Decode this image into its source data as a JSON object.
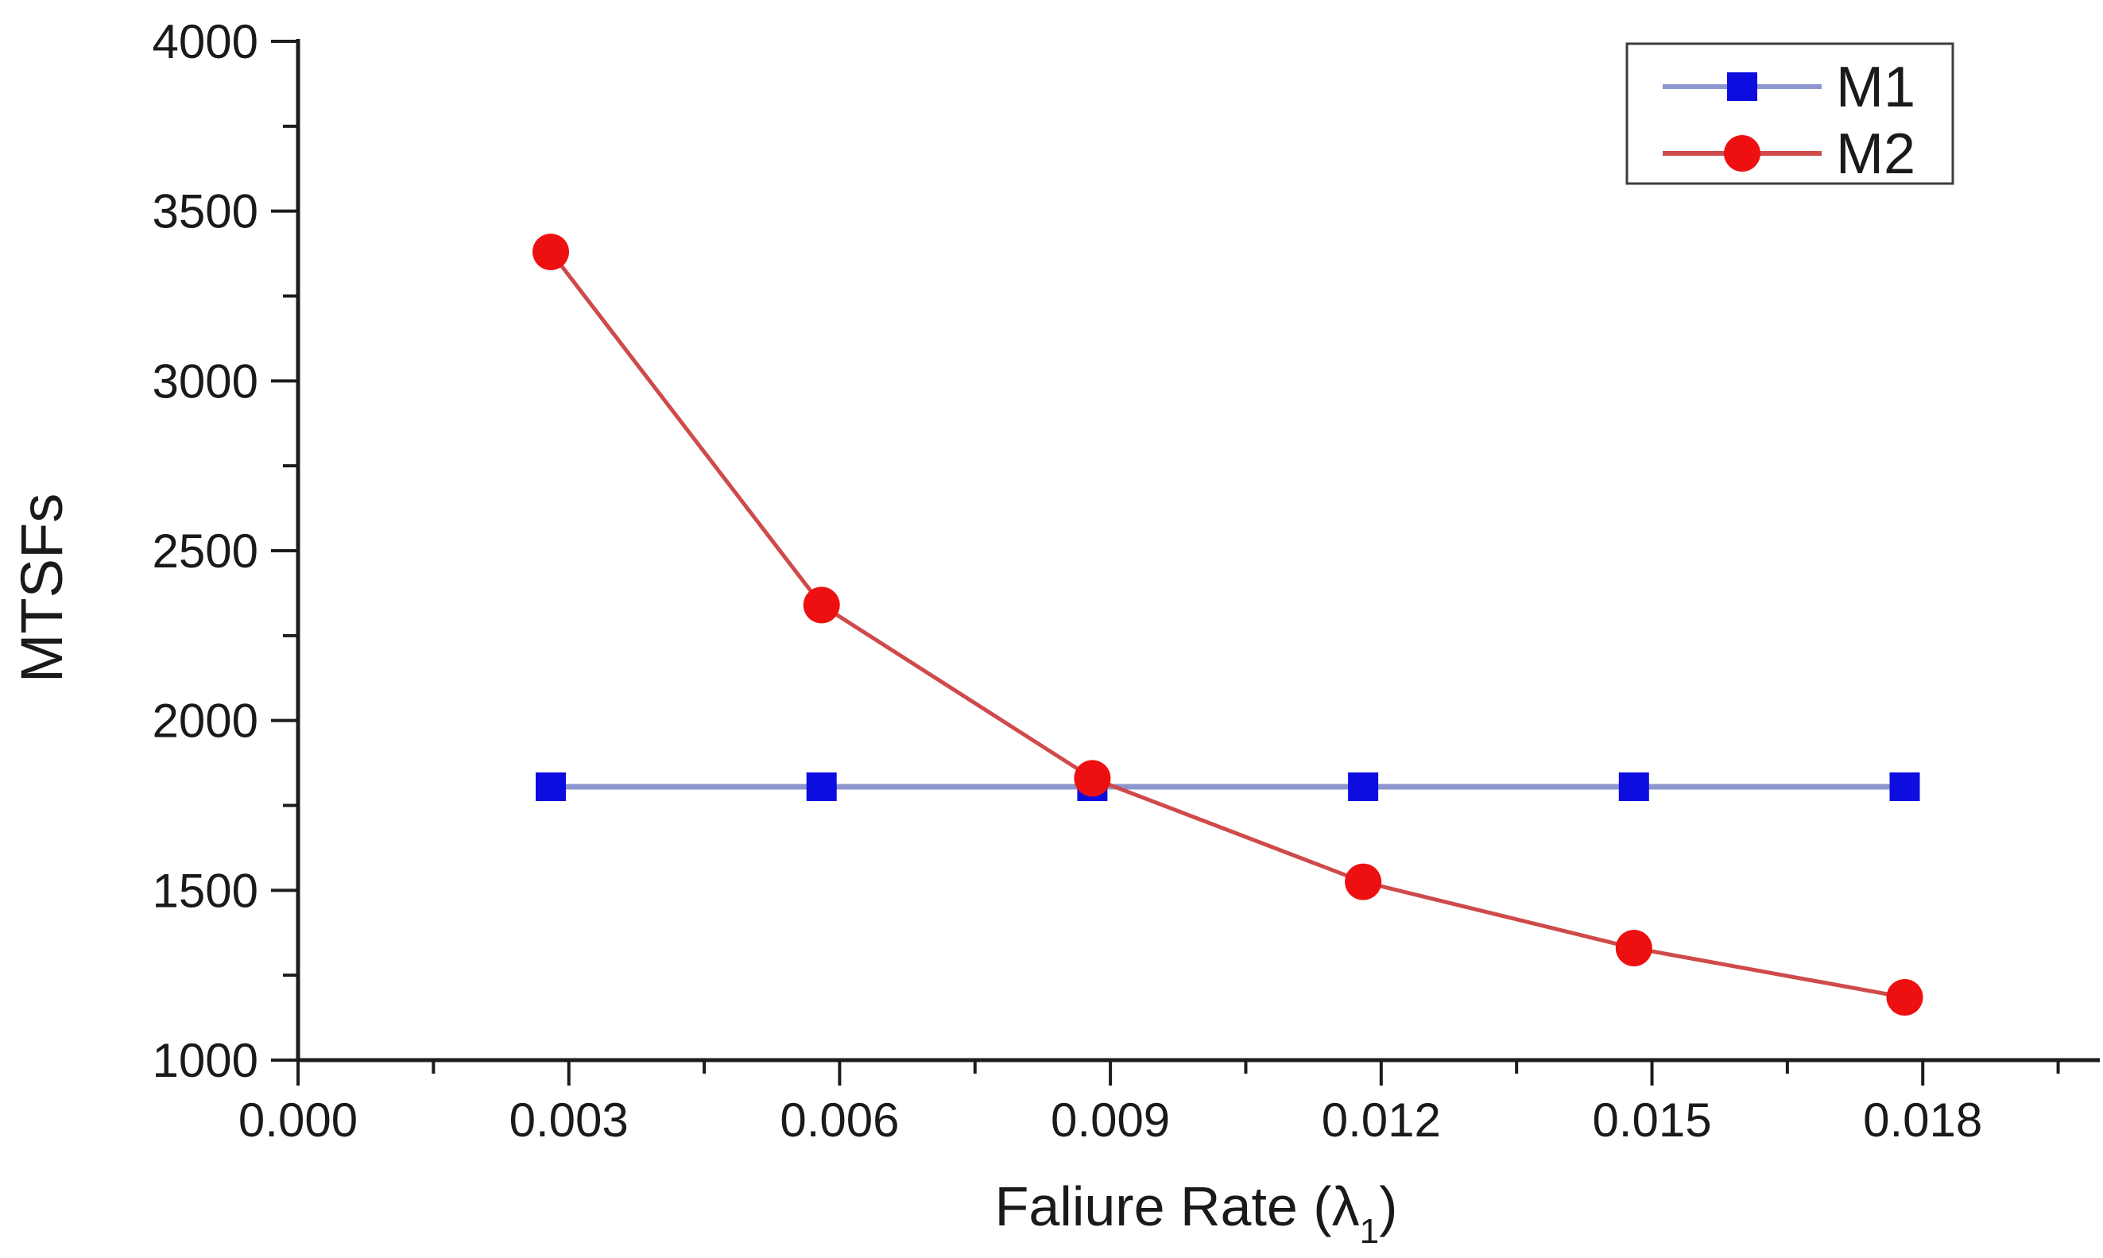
{
  "chart_data": {
    "type": "line",
    "title": "",
    "xlabel": {
      "text": "Faliure Rate (λ1)",
      "prefix": "Faliure Rate (",
      "symbol": "λ",
      "subscript": "1",
      "suffix": ")"
    },
    "ylabel": "MTSFs",
    "x": [
      0.0028,
      0.0058,
      0.0088,
      0.0118,
      0.0148,
      0.0178
    ],
    "series": [
      {
        "name": "M1",
        "marker": "square",
        "marker_color": "#0d0de0",
        "line_color": "#8d96ce",
        "line_width": 7,
        "values": [
          1805,
          1805,
          1805,
          1805,
          1805,
          1805
        ]
      },
      {
        "name": "M2",
        "marker": "circle",
        "marker_color": "#ee1010",
        "line_color": "#cf4a4a",
        "line_width": 5,
        "values": [
          3380,
          2340,
          1830,
          1525,
          1330,
          1185
        ]
      }
    ],
    "xlim": [
      0,
      0.0199
    ],
    "ylim": [
      1000,
      4000
    ],
    "xticks": {
      "values": [
        0,
        0.003,
        0.006,
        0.009,
        0.012,
        0.015,
        0.018
      ],
      "labels": [
        "0.000",
        "0.003",
        "0.006",
        "0.009",
        "0.012",
        "0.015",
        "0.018"
      ],
      "minor": [
        0.0015,
        0.0045,
        0.0075,
        0.0105,
        0.0135,
        0.0165,
        0.0195
      ]
    },
    "yticks": {
      "values": [
        1000,
        1500,
        2000,
        2500,
        3000,
        3500,
        4000
      ],
      "labels": [
        "1000",
        "1500",
        "2000",
        "2500",
        "3000",
        "3500",
        "4000"
      ],
      "minor": [
        1250,
        1750,
        2250,
        2750,
        3250,
        3750
      ]
    },
    "legend": {
      "position": "top-right",
      "items": [
        "M1",
        "M2"
      ]
    },
    "grid": false,
    "axis_color": "#1c1c1c",
    "text_color": "#1a1a1a",
    "background": "#ffffff"
  }
}
